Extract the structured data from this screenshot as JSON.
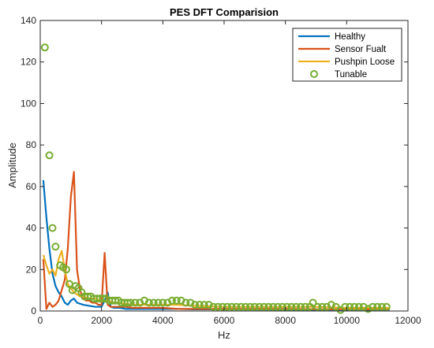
{
  "chart_data": {
    "type": "line",
    "title": "PES DFT Comparision",
    "xlabel": "Hz",
    "ylabel": "Amplitude",
    "xlim": [
      0,
      12000
    ],
    "ylim": [
      0,
      140
    ],
    "x_ticks": [
      0,
      2000,
      4000,
      6000,
      8000,
      10000,
      12000
    ],
    "y_ticks": [
      0,
      20,
      40,
      60,
      80,
      100,
      120,
      140
    ],
    "x_tick_labels": [
      "0",
      "2000",
      "4000",
      "6000",
      "8000",
      "10000",
      "12000"
    ],
    "y_tick_labels": [
      "0",
      "20",
      "40",
      "60",
      "80",
      "100",
      "120",
      "140"
    ],
    "grid": false,
    "legend_position": "top-right",
    "series": [
      {
        "name": "Healthy",
        "style": "line",
        "color": "#0072BD",
        "x": [
          100,
          200,
          300,
          400,
          500,
          600,
          700,
          800,
          900,
          1000,
          1100,
          1200,
          1400,
          1600,
          1800,
          2000,
          2100,
          2200,
          2300,
          2400,
          2600,
          2800,
          3000,
          3500,
          4000,
          4500,
          5000,
          6000,
          7000,
          8000,
          9000,
          10000,
          11000,
          11400
        ],
        "y": [
          63,
          45,
          30,
          18,
          12,
          9,
          7,
          4,
          3,
          5,
          6,
          4,
          3,
          2.5,
          2,
          2,
          5,
          9,
          2,
          1.5,
          1.5,
          1,
          1,
          1,
          1,
          1,
          0.8,
          0.8,
          0.7,
          0.6,
          0.6,
          0.5,
          0.5,
          0.5
        ]
      },
      {
        "name": "Sensor Fualt",
        "style": "line",
        "color": "#D95319",
        "x": [
          100,
          200,
          300,
          400,
          500,
          600,
          700,
          800,
          900,
          1000,
          1100,
          1200,
          1300,
          1400,
          1500,
          1600,
          1700,
          1800,
          1900,
          2000,
          2100,
          2200,
          2300,
          2400,
          2600,
          2800,
          3000,
          3500,
          4000,
          4500,
          5000,
          6000,
          7000,
          8000,
          9000,
          10000,
          11000,
          11400
        ],
        "y": [
          25,
          1,
          4,
          2,
          3,
          5,
          10,
          15,
          30,
          55,
          67,
          20,
          10,
          6,
          5,
          5,
          4,
          4,
          3,
          3,
          28,
          3,
          2,
          2,
          2,
          2,
          1.5,
          1.5,
          1.5,
          1,
          1,
          1,
          1,
          1,
          0.8,
          0.8,
          0.8,
          0.8
        ]
      },
      {
        "name": "Pushpin Loose",
        "style": "line",
        "color": "#EDB120",
        "x": [
          100,
          200,
          300,
          400,
          500,
          600,
          700,
          800,
          900,
          1000,
          1100,
          1200,
          1300,
          1400,
          1600,
          1800,
          2000,
          2200,
          2400,
          2600,
          2800,
          3000,
          3500,
          4000,
          4500,
          5000,
          6000,
          7000,
          8000,
          9000,
          10000,
          11000,
          11400
        ],
        "y": [
          27,
          22,
          18,
          20,
          17,
          25,
          29,
          20,
          13,
          11,
          9,
          8,
          7,
          7,
          6,
          6,
          5,
          5,
          4,
          4,
          3.5,
          3,
          3,
          3,
          3,
          2.5,
          2,
          2,
          2,
          2,
          1.5,
          1.5,
          1.5
        ]
      },
      {
        "name": "Tunable",
        "style": "markers",
        "color": "#77AC30",
        "x": [
          150,
          300,
          400,
          500,
          650,
          750,
          850,
          950,
          1050,
          1150,
          1250,
          1350,
          1450,
          1550,
          1650,
          1750,
          1850,
          1950,
          2050,
          2150,
          2250,
          2350,
          2450,
          2550,
          2650,
          2750,
          2850,
          2950,
          3100,
          3250,
          3400,
          3550,
          3700,
          3850,
          4000,
          4150,
          4300,
          4450,
          4600,
          4750,
          4900,
          5050,
          5200,
          5350,
          5500,
          5650,
          5800,
          5950,
          6100,
          6250,
          6400,
          6550,
          6700,
          6850,
          7000,
          7150,
          7300,
          7450,
          7600,
          7750,
          7900,
          8050,
          8200,
          8350,
          8500,
          8650,
          8800,
          8900,
          9050,
          9200,
          9350,
          9500,
          9650,
          9800,
          9950,
          10100,
          10250,
          10400,
          10550,
          10700,
          10850,
          11000,
          11150,
          11300
        ],
        "y": [
          127,
          75,
          40,
          31,
          22,
          21,
          20,
          13,
          10,
          12,
          11,
          9,
          7,
          7,
          7,
          6,
          6,
          6,
          6,
          6,
          5,
          5,
          5,
          5,
          4,
          4,
          4,
          4,
          4,
          4,
          5,
          4,
          4,
          4,
          4,
          4,
          5,
          5,
          5,
          4,
          4,
          3,
          3,
          3,
          3,
          2,
          2,
          2,
          2,
          2,
          2,
          2,
          2,
          2,
          2,
          2,
          2,
          2,
          2,
          2,
          2,
          2,
          2,
          2,
          2,
          2,
          2,
          4,
          2,
          2,
          2,
          3,
          2,
          0.5,
          2,
          2,
          2,
          2,
          2,
          1,
          2,
          2,
          2,
          2
        ]
      }
    ]
  }
}
